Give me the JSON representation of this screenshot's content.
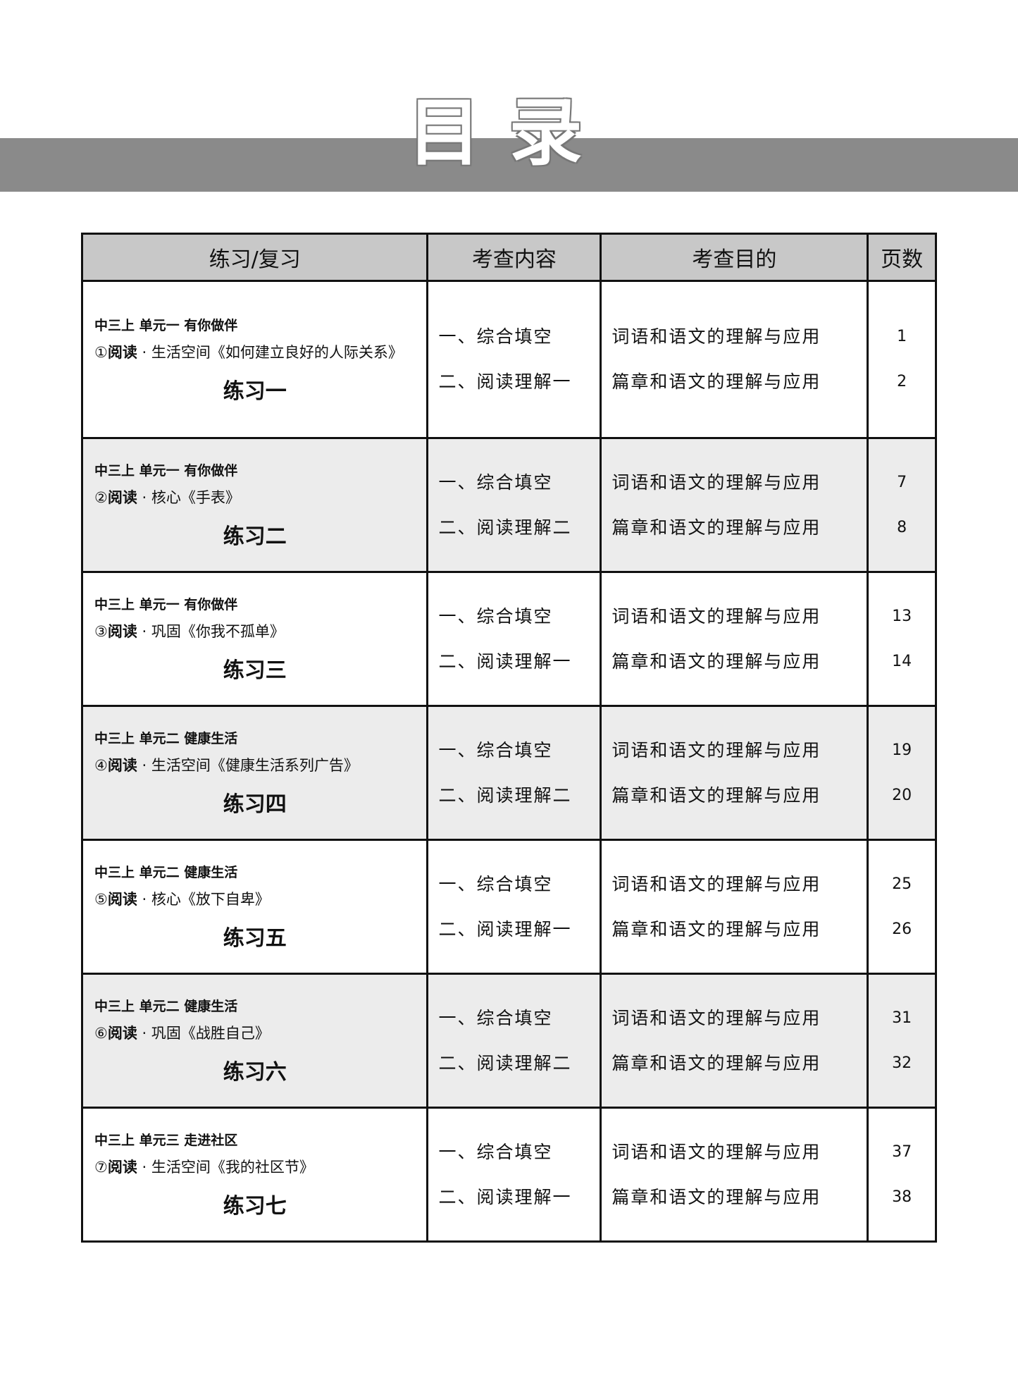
{
  "title": "目录",
  "headers": [
    "练习/复习",
    "考查内容",
    "考查目的",
    "页数"
  ],
  "rows": [
    {
      "unit": "中三上  单元一  有你做伴",
      "num": "①",
      "read": "阅读",
      "sep": " · ",
      "kind": "生活空间",
      "text": "《如何建立良好的人际关系》",
      "exercise": "练习一",
      "contents": [
        "一、综合填空",
        "二、阅读理解一"
      ],
      "purposes": [
        "词语和语文的理解与应用",
        "篇章和语文的理解与应用"
      ],
      "pages": [
        "1",
        "2"
      ]
    },
    {
      "unit": "中三上  单元一  有你做伴",
      "num": "②",
      "read": "阅读",
      "sep": " · ",
      "kind": "核心",
      "text": "《手表》",
      "exercise": "练习二",
      "contents": [
        "一、综合填空",
        "二、阅读理解二"
      ],
      "purposes": [
        "词语和语文的理解与应用",
        "篇章和语文的理解与应用"
      ],
      "pages": [
        "7",
        "8"
      ]
    },
    {
      "unit": "中三上  单元一  有你做伴",
      "num": "③",
      "read": "阅读",
      "sep": " · ",
      "kind": "巩固",
      "text": "《你我不孤单》",
      "exercise": "练习三",
      "contents": [
        "一、综合填空",
        "二、阅读理解一"
      ],
      "purposes": [
        "词语和语文的理解与应用",
        "篇章和语文的理解与应用"
      ],
      "pages": [
        "13",
        "14"
      ]
    },
    {
      "unit": "中三上  单元二   健康生活",
      "num": "④",
      "read": "阅读",
      "sep": " · ",
      "kind": "生活空间",
      "text": "《健康生活系列广告》",
      "exercise": "练习四",
      "contents": [
        "一、综合填空",
        "二、阅读理解二"
      ],
      "purposes": [
        "词语和语文的理解与应用",
        "篇章和语文的理解与应用"
      ],
      "pages": [
        "19",
        "20"
      ]
    },
    {
      "unit": "中三上  单元二   健康生活",
      "num": "⑤",
      "read": "阅读",
      "sep": " · ",
      "kind": "核心",
      "text": "《放下自卑》",
      "exercise": "练习五",
      "contents": [
        "一、综合填空",
        "二、阅读理解一"
      ],
      "purposes": [
        "词语和语文的理解与应用",
        "篇章和语文的理解与应用"
      ],
      "pages": [
        "25",
        "26"
      ]
    },
    {
      "unit": "中三上  单元二   健康生活",
      "num": "⑥",
      "read": "阅读",
      "sep": " · ",
      "kind": "巩固",
      "text": "《战胜自己》",
      "exercise": "练习六",
      "contents": [
        "一、综合填空",
        "二、阅读理解二"
      ],
      "purposes": [
        "词语和语文的理解与应用",
        "篇章和语文的理解与应用"
      ],
      "pages": [
        "31",
        "32"
      ]
    },
    {
      "unit": "中三上  单元三   走进社区",
      "num": "⑦",
      "read": "阅读",
      "sep": " · ",
      "kind": "生活空间",
      "text": "《我的社区节》",
      "exercise": "练习七",
      "contents": [
        "一、综合填空",
        "二、阅读理解一"
      ],
      "purposes": [
        "词语和语文的理解与应用",
        "篇章和语文的理解与应用"
      ],
      "pages": [
        "37",
        "38"
      ]
    }
  ]
}
